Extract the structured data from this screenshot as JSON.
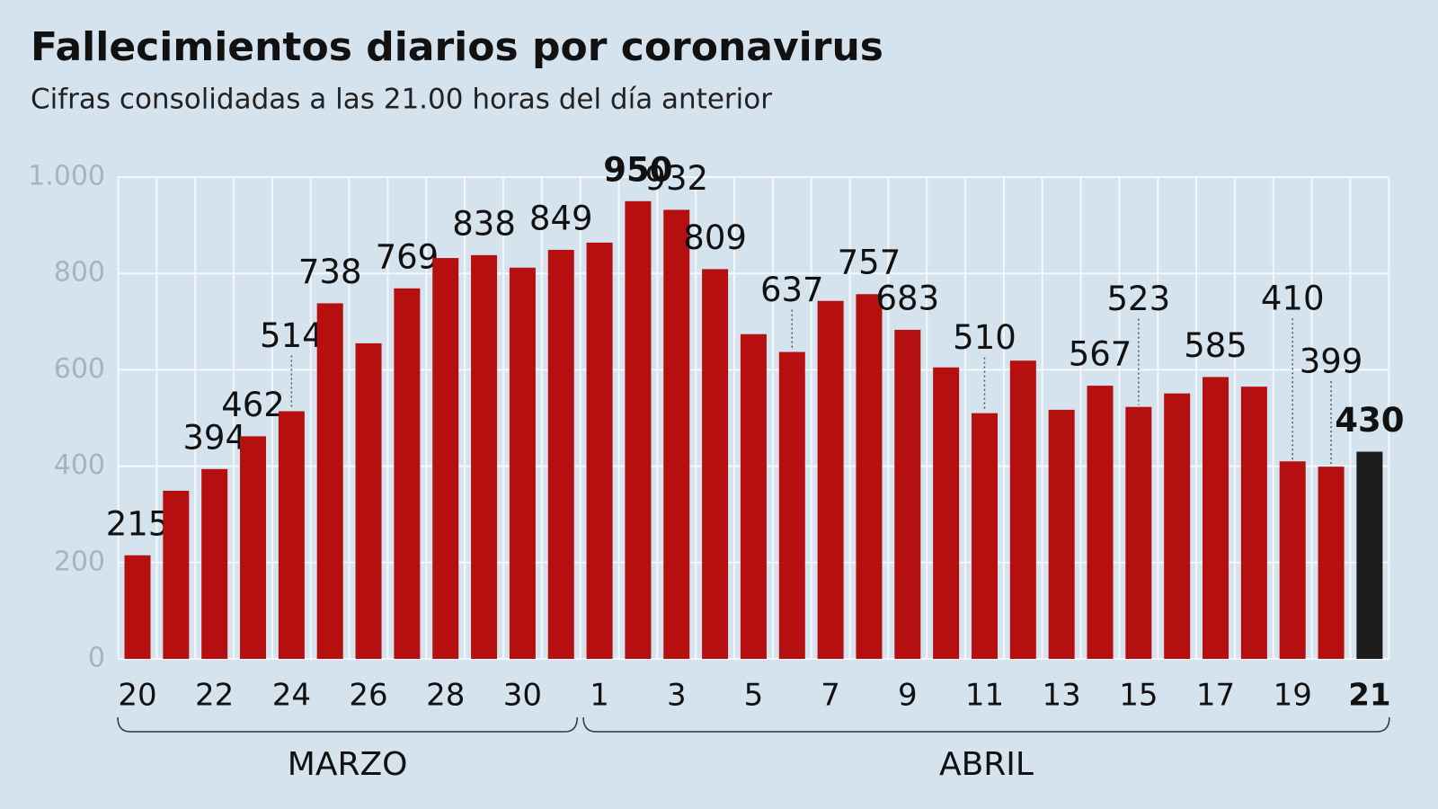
{
  "chart_data": {
    "type": "bar",
    "title": "Fallecimientos diarios por coronavirus",
    "subtitle": "Cifras consolidadas a las 21.00 horas del día anterior",
    "categories": [
      20,
      null,
      22,
      null,
      24,
      null,
      26,
      null,
      28,
      null,
      30,
      null,
      1,
      null,
      3,
      null,
      5,
      null,
      7,
      null,
      9,
      null,
      11,
      null,
      13,
      null,
      15,
      null,
      17,
      null,
      19,
      null,
      21
    ],
    "values": [
      215,
      349,
      394,
      462,
      514,
      738,
      655,
      769,
      832,
      838,
      812,
      849,
      864,
      950,
      932,
      809,
      674,
      637,
      743,
      757,
      683,
      605,
      510,
      619,
      517,
      567,
      523,
      551,
      585,
      565,
      410,
      399,
      430
    ],
    "value_labels": [
      "215",
      null,
      "394",
      "462",
      "514",
      "738",
      null,
      "769",
      null,
      "838",
      null,
      "849",
      null,
      "950",
      "932",
      "809",
      null,
      "637",
      null,
      "757",
      "683",
      null,
      "510",
      null,
      null,
      "567",
      "523",
      null,
      "585",
      null,
      "410",
      "399",
      "430"
    ],
    "colors": [
      "#b5100f",
      "#b5100f",
      "#b5100f",
      "#b5100f",
      "#b5100f",
      "#b5100f",
      "#b5100f",
      "#b5100f",
      "#b5100f",
      "#b5100f",
      "#b5100f",
      "#b5100f",
      "#b5100f",
      "#b5100f",
      "#b5100f",
      "#b5100f",
      "#b5100f",
      "#b5100f",
      "#b5100f",
      "#b5100f",
      "#b5100f",
      "#b5100f",
      "#b5100f",
      "#b5100f",
      "#b5100f",
      "#b5100f",
      "#b5100f",
      "#b5100f",
      "#b5100f",
      "#b5100f",
      "#b5100f",
      "#b5100f",
      "#1c1c1c"
    ],
    "groups": [
      "MARZO",
      "ABRIL"
    ],
    "ylim": [
      0,
      1000
    ],
    "yticks": [
      0,
      200,
      400,
      600,
      800,
      {
        "value": 1000,
        "label": "1.000"
      }
    ],
    "grid": true
  }
}
